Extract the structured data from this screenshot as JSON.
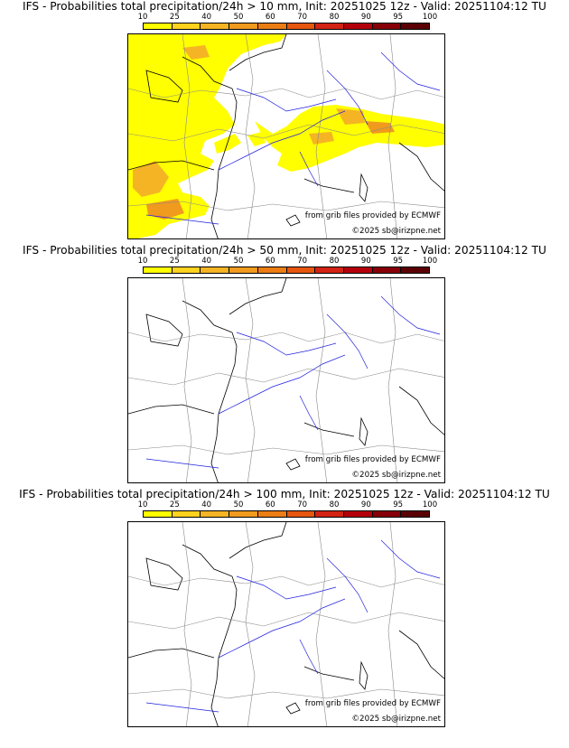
{
  "legend": {
    "labels": [
      "10",
      "25",
      "40",
      "50",
      "60",
      "70",
      "80",
      "90",
      "95",
      "100"
    ],
    "colors": [
      "#ffff00",
      "#ffd21e",
      "#f5b424",
      "#f09a1e",
      "#eb7d14",
      "#e6560e",
      "#d22314",
      "#b4000a",
      "#870008",
      "#5a0005"
    ]
  },
  "panels": [
    {
      "title": "IFS - Probabilities total precipitation/24h > 10 mm, Init: 20251025 12z - Valid: 20251104:12 TU",
      "shaded": true,
      "source_note": "from grib files provided by ECMWF",
      "copyright": "©2025 sb@irizpne.net"
    },
    {
      "title": "IFS - Probabilities total precipitation/24h > 50 mm, Init: 20251025 12z - Valid: 20251104:12 TU",
      "shaded": false,
      "source_note": "from grib files provided by ECMWF",
      "copyright": "©2025 sb@irizpne.net"
    },
    {
      "title": "IFS - Probabilities total precipitation/24h > 100 mm, Init: 20251025 12z - Valid: 20251104:12 TU",
      "shaded": false,
      "source_note": "from grib files provided by ECMWF",
      "copyright": "©2025 sb@irizpne.net"
    }
  ]
}
